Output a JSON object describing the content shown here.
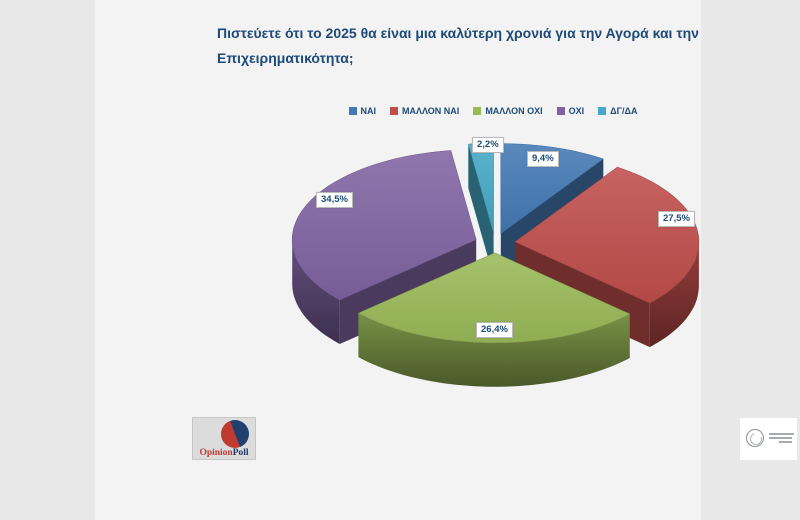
{
  "page": {
    "background_outer": "#e8e8e8",
    "background_slide": "#f3f3f3"
  },
  "title": {
    "full": "Πιστεύετε ότι το 2025 θα είναι μια καλύτερη χρονιά για την Αγορά και την Επιχειρηματικότητα;",
    "lines": [
      "Πιστεύετε ότι το 2025 θα είναι μια καλύτερη χρονιά για την Αγορά και την",
      "Επιχειρηματικότητα;"
    ],
    "color": "#1d4a78"
  },
  "chart_data": {
    "type": "pie",
    "style": "3d-exploded",
    "title": "Πιστεύετε ότι το 2025 θα είναι μια καλύτερη χρονιά για την Αγορά και την Επιχειρηματικότητα;",
    "unit": "%",
    "value_format": "comma-decimal",
    "legend_position": "top",
    "rotation_start_deg_from_12_oclock": 0,
    "slices": [
      {
        "label": "ΝΑΙ",
        "value": 9.4,
        "pct_label": "9,4%",
        "color": "#4379B4"
      },
      {
        "label": "ΜΑΛΛΟΝ ΝΑΙ",
        "value": 27.5,
        "pct_label": "27,5%",
        "color": "#BF4E4B"
      },
      {
        "label": "ΜΑΛΛΟΝ ΟΧΙ",
        "value": 26.4,
        "pct_label": "26,4%",
        "color": "#9ABA58"
      },
      {
        "label": "ΟΧΙ",
        "value": 34.5,
        "pct_label": "34,5%",
        "color": "#8064A2"
      },
      {
        "label": "ΔΓ/ΔΑ",
        "value": 2.2,
        "pct_label": "2,2%",
        "color": "#45A9C6"
      }
    ]
  },
  "footer": {
    "opinionpoll": {
      "word_red": "Opinion",
      "word_navy": "Poll",
      "color_red": "#bf3a31",
      "color_navy": "#1f3a66"
    },
    "emblem": {
      "description": "small circular seal logo with three illegible gray text lines",
      "illegible_text_lines": 3
    }
  }
}
